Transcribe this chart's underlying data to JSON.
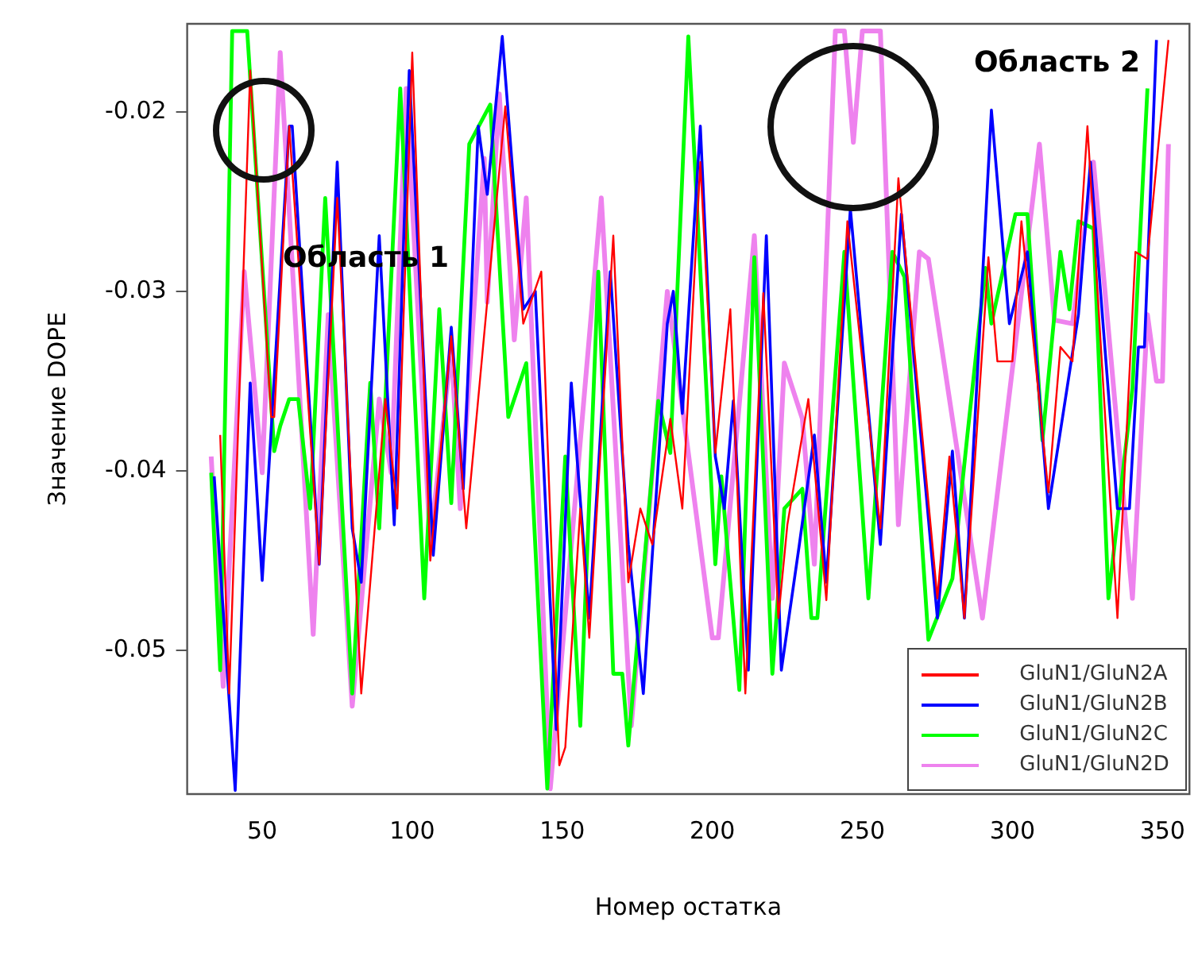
{
  "chart_data": {
    "type": "line",
    "xlabel": "Номер остатка",
    "ylabel": "Значение DOPE",
    "xlim": [
      25,
      359
    ],
    "xticks": [
      50,
      100,
      150,
      200,
      250,
      300,
      350
    ],
    "ylim": [
      -0.058,
      -0.0151
    ],
    "yticks": [
      -0.05,
      -0.04,
      -0.03,
      -0.02
    ],
    "grid": false,
    "legend": "bottom right",
    "marker": "none",
    "line_style": "solid",
    "annotations": [
      "Область 1",
      "Область 2"
    ],
    "series": [
      {
        "name": "GluN1/GluN2A",
        "color": "#ff0000",
        "x": [
          36,
          39,
          46,
          53,
          54,
          59,
          69,
          75,
          83,
          91,
          95,
          100,
          106,
          113,
          118,
          131,
          137,
          143,
          149,
          151,
          156,
          159,
          167,
          172,
          176,
          180,
          186,
          190,
          196,
          201,
          206,
          211,
          217,
          222,
          225,
          232,
          238,
          245,
          256,
          262,
          275,
          279,
          284,
          292,
          295,
          300,
          303,
          312,
          316,
          320,
          325,
          335,
          341,
          345,
          352
        ],
        "values": [
          -0.038,
          -0.0524,
          -0.0177,
          -0.037,
          -0.037,
          -0.0208,
          -0.0452,
          -0.0248,
          -0.0524,
          -0.036,
          -0.0421,
          -0.0167,
          -0.045,
          -0.0325,
          -0.0432,
          -0.0197,
          -0.0318,
          -0.0289,
          -0.0564,
          -0.0554,
          -0.0421,
          -0.0493,
          -0.0269,
          -0.0462,
          -0.0421,
          -0.0441,
          -0.0371,
          -0.0421,
          -0.0228,
          -0.039,
          -0.031,
          -0.0524,
          -0.0301,
          -0.0482,
          -0.043,
          -0.036,
          -0.0472,
          -0.0261,
          -0.0432,
          -0.0237,
          -0.0471,
          -0.0392,
          -0.0482,
          -0.0281,
          -0.0339,
          -0.0339,
          -0.0261,
          -0.0412,
          -0.0331,
          -0.0339,
          -0.0208,
          -0.0482,
          -0.0278,
          -0.0282,
          -0.016
        ]
      },
      {
        "name": "GluN1/GluN2B",
        "color": "#0000ff",
        "x": [
          34,
          41,
          46,
          50,
          59,
          60,
          69,
          75,
          80,
          83,
          89,
          94,
          99,
          107,
          113,
          117,
          122,
          125,
          130,
          137,
          141,
          148,
          153,
          159,
          166,
          172,
          177,
          185,
          187,
          190,
          196,
          201,
          204,
          207,
          212,
          218,
          223,
          229,
          234,
          238,
          246,
          249,
          256,
          263,
          269,
          275,
          280,
          284,
          293,
          299,
          305,
          312,
          322,
          326,
          335,
          339,
          342,
          344,
          348
        ],
        "values": [
          -0.0403,
          -0.0578,
          -0.0351,
          -0.0461,
          -0.0208,
          -0.0208,
          -0.0452,
          -0.0228,
          -0.0432,
          -0.0462,
          -0.0269,
          -0.043,
          -0.0177,
          -0.0447,
          -0.032,
          -0.041,
          -0.0208,
          -0.0246,
          -0.0158,
          -0.031,
          -0.03,
          -0.0544,
          -0.0351,
          -0.0482,
          -0.0289,
          -0.0441,
          -0.0524,
          -0.0318,
          -0.03,
          -0.0368,
          -0.0208,
          -0.0392,
          -0.0421,
          -0.0361,
          -0.0511,
          -0.0269,
          -0.0511,
          -0.0441,
          -0.038,
          -0.0462,
          -0.0254,
          -0.031,
          -0.0441,
          -0.0257,
          -0.0371,
          -0.0482,
          -0.0389,
          -0.0482,
          -0.0199,
          -0.0318,
          -0.0278,
          -0.0421,
          -0.0313,
          -0.0228,
          -0.0421,
          -0.0421,
          -0.0331,
          -0.0331,
          -0.016
        ]
      },
      {
        "name": "GluN1/GluN2C",
        "color": "#00ff00",
        "x": [
          33,
          36,
          40,
          45,
          54,
          56,
          59,
          62,
          66,
          71,
          80,
          86,
          89,
          96,
          104,
          109,
          113,
          119,
          126,
          132,
          138,
          145,
          151,
          156,
          162,
          167,
          170,
          172,
          182,
          186,
          192,
          201,
          203,
          209,
          214,
          220,
          224,
          230,
          233,
          235,
          244,
          252,
          260,
          264,
          272,
          280,
          285,
          291,
          293,
          301,
          305,
          310,
          316,
          319,
          322,
          327,
          332,
          340,
          345
        ],
        "values": [
          -0.0401,
          -0.0511,
          -0.0155,
          -0.0155,
          -0.0389,
          -0.0375,
          -0.036,
          -0.036,
          -0.0421,
          -0.0248,
          -0.0524,
          -0.0351,
          -0.0432,
          -0.0187,
          -0.0471,
          -0.031,
          -0.0418,
          -0.0218,
          -0.0196,
          -0.037,
          -0.034,
          -0.0577,
          -0.0392,
          -0.0542,
          -0.0289,
          -0.0513,
          -0.0513,
          -0.0553,
          -0.0361,
          -0.039,
          -0.0158,
          -0.0452,
          -0.0403,
          -0.0522,
          -0.0281,
          -0.0513,
          -0.0421,
          -0.041,
          -0.0482,
          -0.0482,
          -0.0278,
          -0.0471,
          -0.0278,
          -0.0292,
          -0.0494,
          -0.046,
          -0.038,
          -0.0287,
          -0.0318,
          -0.0257,
          -0.0257,
          -0.0383,
          -0.0278,
          -0.031,
          -0.0261,
          -0.0265,
          -0.0471,
          -0.0354,
          -0.0187
        ]
      },
      {
        "name": "GluN1/GluN2D",
        "color": "#ee82ee",
        "x": [
          33,
          37,
          44,
          50,
          56,
          67,
          72,
          80,
          89,
          93,
          98,
          106,
          113,
          116,
          124,
          125,
          129,
          134,
          138,
          146,
          163,
          173,
          185,
          200,
          202,
          214,
          220,
          224,
          230,
          234,
          241,
          244,
          247,
          250,
          256,
          262,
          269,
          272,
          290,
          309,
          314,
          320,
          327,
          340,
          345,
          348,
          350,
          352
        ],
        "values": [
          -0.0392,
          -0.052,
          -0.0289,
          -0.0401,
          -0.0167,
          -0.0491,
          -0.0313,
          -0.0531,
          -0.036,
          -0.0401,
          -0.0187,
          -0.0441,
          -0.0331,
          -0.0421,
          -0.0226,
          -0.0306,
          -0.019,
          -0.0327,
          -0.0248,
          -0.0577,
          -0.0248,
          -0.0542,
          -0.03,
          -0.0493,
          -0.0493,
          -0.0269,
          -0.0471,
          -0.034,
          -0.0371,
          -0.0452,
          -0.0155,
          -0.0155,
          -0.0217,
          -0.0155,
          -0.0155,
          -0.043,
          -0.0278,
          -0.0282,
          -0.0482,
          -0.0218,
          -0.0316,
          -0.0318,
          -0.0228,
          -0.0471,
          -0.0313,
          -0.035,
          -0.035,
          -0.0218
        ]
      }
    ]
  }
}
